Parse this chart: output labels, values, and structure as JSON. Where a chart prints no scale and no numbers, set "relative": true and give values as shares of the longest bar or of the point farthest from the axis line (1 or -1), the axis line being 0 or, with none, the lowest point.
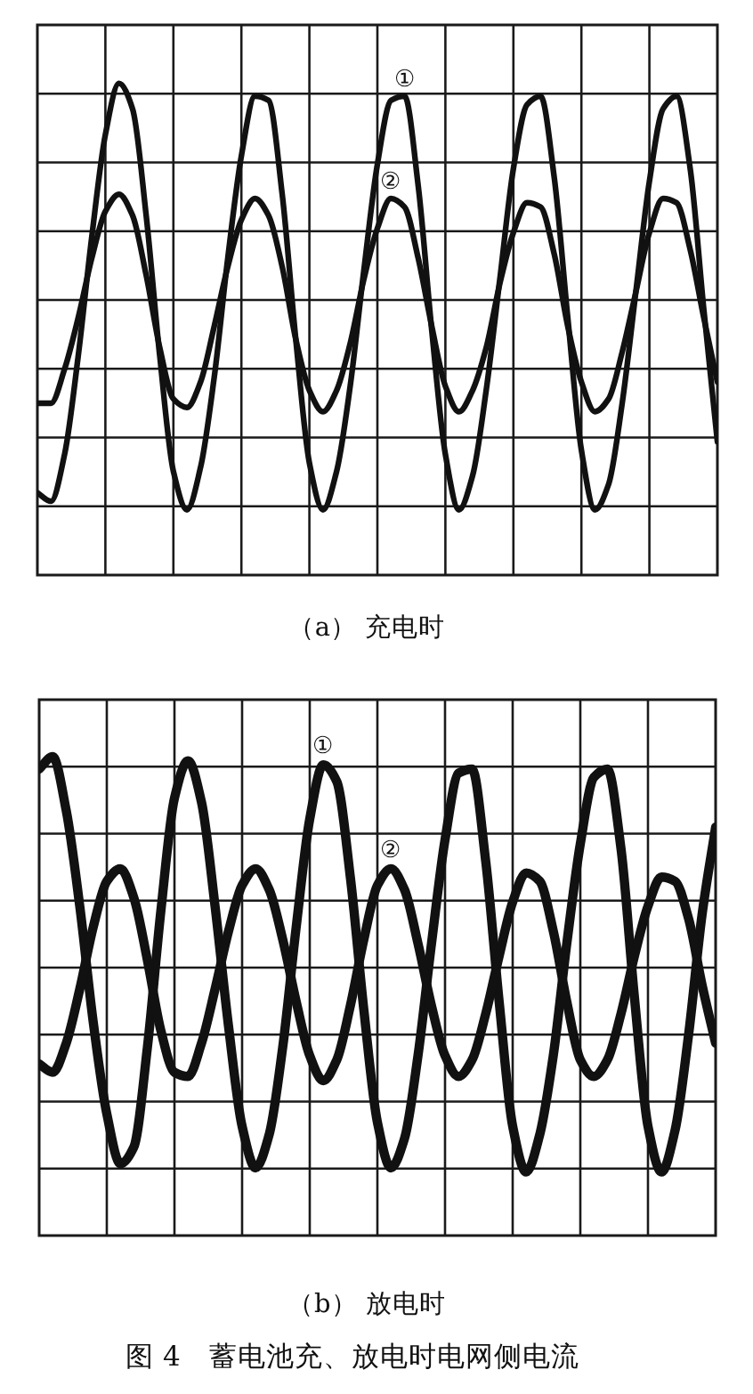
{
  "chart_data": [
    {
      "type": "line",
      "title": "（a） 充电时",
      "relative": true,
      "grid": true,
      "categories": [
        null,
        null,
        null,
        null,
        null,
        null,
        null,
        null,
        null,
        null,
        null,
        null,
        null,
        null,
        null,
        null,
        null,
        null,
        null,
        null,
        null,
        null,
        null,
        null,
        null,
        null,
        null,
        null,
        null,
        null,
        null,
        null,
        null,
        null,
        null,
        null,
        null,
        null,
        null,
        null,
        null,
        null,
        null,
        null,
        null,
        null,
        null,
        null,
        null,
        null,
        null
      ],
      "series": [
        {
          "name": "①",
          "color": "#111111",
          "values": [
            0.04,
            0.02,
            0.13,
            0.36,
            0.64,
            0.88,
            1,
            0.94,
            0.69,
            0.36,
            0.09,
            0,
            0.1,
            0.31,
            0.59,
            0.83,
            0.97,
            0.96,
            0.74,
            0.4,
            0.11,
            0,
            0.09,
            0.29,
            0.56,
            0.81,
            0.96,
            0.97,
            0.76,
            0.42,
            0.13,
            0,
            0.08,
            0.28,
            0.54,
            0.8,
            0.95,
            0.97,
            0.78,
            0.45,
            0.14,
            0,
            0.06,
            0.25,
            0.51,
            0.77,
            0.94,
            0.97,
            0.8,
            0.47,
            0.16
          ]
        },
        {
          "name": "②",
          "color": "#111111",
          "values": [
            0.25,
            0.25,
            0.33,
            0.45,
            0.59,
            0.7,
            0.74,
            0.69,
            0.55,
            0.38,
            0.26,
            0.24,
            0.3,
            0.43,
            0.57,
            0.68,
            0.73,
            0.69,
            0.57,
            0.4,
            0.28,
            0.23,
            0.28,
            0.39,
            0.54,
            0.66,
            0.73,
            0.71,
            0.59,
            0.43,
            0.29,
            0.23,
            0.28,
            0.38,
            0.53,
            0.65,
            0.72,
            0.71,
            0.6,
            0.43,
            0.3,
            0.23,
            0.26,
            0.37,
            0.51,
            0.65,
            0.73,
            0.72,
            0.61,
            0.45,
            0.3
          ]
        }
      ]
    },
    {
      "type": "line",
      "title": "（b） 放电时",
      "relative": true,
      "grid": true,
      "annotations": [
        "图 4　蓄电池充、放电时电网侧电流"
      ],
      "categories": [
        null,
        null,
        null,
        null,
        null,
        null,
        null,
        null,
        null,
        null,
        null,
        null,
        null,
        null,
        null,
        null,
        null,
        null,
        null,
        null,
        null,
        null,
        null,
        null,
        null,
        null,
        null,
        null,
        null,
        null,
        null,
        null,
        null,
        null,
        null,
        null,
        null,
        null,
        null,
        null,
        null,
        null,
        null,
        null,
        null,
        null,
        null,
        null,
        null,
        null,
        null
      ],
      "series": [
        {
          "name": "①",
          "color": "#111111",
          "values": [
            0.97,
            1,
            0.87,
            0.64,
            0.36,
            0.14,
            0.02,
            0.06,
            0.3,
            0.63,
            0.9,
            0.99,
            0.89,
            0.64,
            0.35,
            0.11,
            0.01,
            0.09,
            0.3,
            0.59,
            0.85,
            0.98,
            0.94,
            0.71,
            0.39,
            0.12,
            0.01,
            0.08,
            0.28,
            0.55,
            0.8,
            0.96,
            0.97,
            0.75,
            0.41,
            0.11,
            0,
            0.09,
            0.28,
            0.55,
            0.79,
            0.95,
            0.97,
            0.78,
            0.42,
            0.11,
            0,
            0.1,
            0.33,
            0.62,
            0.83
          ]
        },
        {
          "name": "②",
          "color": "#111111",
          "values": [
            0.26,
            0.24,
            0.31,
            0.44,
            0.59,
            0.7,
            0.73,
            0.66,
            0.51,
            0.34,
            0.24,
            0.23,
            0.31,
            0.44,
            0.58,
            0.69,
            0.73,
            0.68,
            0.56,
            0.41,
            0.28,
            0.22,
            0.27,
            0.4,
            0.56,
            0.69,
            0.73,
            0.68,
            0.55,
            0.4,
            0.28,
            0.23,
            0.27,
            0.38,
            0.52,
            0.65,
            0.72,
            0.7,
            0.58,
            0.41,
            0.27,
            0.23,
            0.27,
            0.38,
            0.52,
            0.64,
            0.71,
            0.7,
            0.61,
            0.45,
            0.31
          ]
        }
      ]
    }
  ]
}
